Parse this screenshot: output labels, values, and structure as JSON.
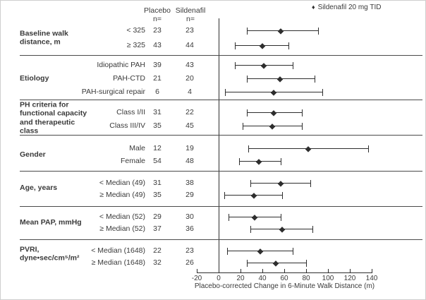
{
  "legend": {
    "marker": "♦",
    "label": "Sildenafil 20 mg TID"
  },
  "columns": {
    "placebo": "Placebo",
    "sildenafil": "Sildenafil",
    "n_eq": "n="
  },
  "axis": {
    "title": "Placebo-corrected Change in 6-Minute Walk Distance (m)",
    "ticks": [
      -20,
      0,
      20,
      40,
      60,
      80,
      100,
      120,
      140
    ]
  },
  "groups": [
    {
      "label": "Baseline walk\ndistance, m",
      "rows": [
        {
          "label": "< 325",
          "placebo_n": "23",
          "sildenafil_n": "23",
          "estimate": 57,
          "ci_low": 26,
          "ci_high": 91
        },
        {
          "label": "≥ 325",
          "placebo_n": "43",
          "sildenafil_n": "44",
          "estimate": 40,
          "ci_low": 15,
          "ci_high": 64
        }
      ]
    },
    {
      "label": "Etiology",
      "rows": [
        {
          "label": "Idiopathic PAH",
          "placebo_n": "39",
          "sildenafil_n": "43",
          "estimate": 41,
          "ci_low": 15,
          "ci_high": 68
        },
        {
          "label": "PAH-CTD",
          "placebo_n": "21",
          "sildenafil_n": "20",
          "estimate": 56,
          "ci_low": 26,
          "ci_high": 88
        },
        {
          "label": "PAH-surgical repair",
          "placebo_n": "6",
          "sildenafil_n": "4",
          "estimate": 50,
          "ci_low": 6,
          "ci_high": 95
        }
      ]
    },
    {
      "label": "PH criteria for\nfunctional capacity\nand therapeutic\nclass",
      "rows": [
        {
          "label": "Class I/II",
          "placebo_n": "31",
          "sildenafil_n": "22",
          "estimate": 50,
          "ci_low": 26,
          "ci_high": 76
        },
        {
          "label": "Class III/IV",
          "placebo_n": "35",
          "sildenafil_n": "45",
          "estimate": 49,
          "ci_low": 22,
          "ci_high": 76
        }
      ]
    },
    {
      "label": "Gender",
      "rows": [
        {
          "label": "Male",
          "placebo_n": "12",
          "sildenafil_n": "19",
          "estimate": 82,
          "ci_low": 27,
          "ci_high": 137
        },
        {
          "label": "Female",
          "placebo_n": "54",
          "sildenafil_n": "48",
          "estimate": 37,
          "ci_low": 19,
          "ci_high": 57
        }
      ]
    },
    {
      "label": "Age, years",
      "rows": [
        {
          "label": "< Median (49)",
          "placebo_n": "31",
          "sildenafil_n": "38",
          "estimate": 57,
          "ci_low": 29,
          "ci_high": 84
        },
        {
          "label": "≥ Median (49)",
          "placebo_n": "35",
          "sildenafil_n": "29",
          "estimate": 32,
          "ci_low": 5,
          "ci_high": 58
        }
      ]
    },
    {
      "label": "Mean PAP, mmHg",
      "rows": [
        {
          "label": "< Median (52)",
          "placebo_n": "29",
          "sildenafil_n": "30",
          "estimate": 33,
          "ci_low": 9,
          "ci_high": 57
        },
        {
          "label": "≥ Median (52)",
          "placebo_n": "37",
          "sildenafil_n": "36",
          "estimate": 58,
          "ci_low": 29,
          "ci_high": 86
        }
      ]
    },
    {
      "label": "PVRI,\ndyne•sec/cm⁵/m²",
      "rows": [
        {
          "label": "< Median (1648)",
          "placebo_n": "22",
          "sildenafil_n": "23",
          "estimate": 38,
          "ci_low": 8,
          "ci_high": 68
        },
        {
          "label": "≥ Median (1648)",
          "placebo_n": "32",
          "sildenafil_n": "26",
          "estimate": 52,
          "ci_low": 26,
          "ci_high": 80
        }
      ]
    }
  ],
  "chart_data": {
    "type": "scatter",
    "subtype": "forest-plot",
    "title": "",
    "xlabel": "Placebo-corrected Change in 6-Minute Walk Distance (m)",
    "xlim": [
      -20,
      140
    ],
    "x_ticks": [
      -20,
      0,
      20,
      40,
      60,
      80,
      100,
      120,
      140
    ],
    "reference_line_x": 0,
    "legend_position": "top-right",
    "grid": false,
    "series": [
      {
        "name": "Sildenafil 20 mg TID",
        "marker": "diamond",
        "points": [
          {
            "group": "Baseline walk distance, m",
            "subgroup": "< 325",
            "placebo_n": 23,
            "sildenafil_n": 23,
            "estimate": 57,
            "ci": [
              26,
              91
            ]
          },
          {
            "group": "Baseline walk distance, m",
            "subgroup": "≥ 325",
            "placebo_n": 43,
            "sildenafil_n": 44,
            "estimate": 40,
            "ci": [
              15,
              64
            ]
          },
          {
            "group": "Etiology",
            "subgroup": "Idiopathic PAH",
            "placebo_n": 39,
            "sildenafil_n": 43,
            "estimate": 41,
            "ci": [
              15,
              68
            ]
          },
          {
            "group": "Etiology",
            "subgroup": "PAH-CTD",
            "placebo_n": 21,
            "sildenafil_n": 20,
            "estimate": 56,
            "ci": [
              26,
              88
            ]
          },
          {
            "group": "Etiology",
            "subgroup": "PAH-surgical repair",
            "placebo_n": 6,
            "sildenafil_n": 4,
            "estimate": 50,
            "ci": [
              6,
              95
            ]
          },
          {
            "group": "PH criteria for functional capacity and therapeutic class",
            "subgroup": "Class I/II",
            "placebo_n": 31,
            "sildenafil_n": 22,
            "estimate": 50,
            "ci": [
              26,
              76
            ]
          },
          {
            "group": "PH criteria for functional capacity and therapeutic class",
            "subgroup": "Class III/IV",
            "placebo_n": 35,
            "sildenafil_n": 45,
            "estimate": 49,
            "ci": [
              22,
              76
            ]
          },
          {
            "group": "Gender",
            "subgroup": "Male",
            "placebo_n": 12,
            "sildenafil_n": 19,
            "estimate": 82,
            "ci": [
              27,
              137
            ]
          },
          {
            "group": "Gender",
            "subgroup": "Female",
            "placebo_n": 54,
            "sildenafil_n": 48,
            "estimate": 37,
            "ci": [
              19,
              57
            ]
          },
          {
            "group": "Age, years",
            "subgroup": "< Median (49)",
            "placebo_n": 31,
            "sildenafil_n": 38,
            "estimate": 57,
            "ci": [
              29,
              84
            ]
          },
          {
            "group": "Age, years",
            "subgroup": "≥ Median (49)",
            "placebo_n": 35,
            "sildenafil_n": 29,
            "estimate": 32,
            "ci": [
              5,
              58
            ]
          },
          {
            "group": "Mean PAP, mmHg",
            "subgroup": "< Median (52)",
            "placebo_n": 29,
            "sildenafil_n": 30,
            "estimate": 33,
            "ci": [
              9,
              57
            ]
          },
          {
            "group": "Mean PAP, mmHg",
            "subgroup": "≥ Median (52)",
            "placebo_n": 37,
            "sildenafil_n": 36,
            "estimate": 58,
            "ci": [
              29,
              86
            ]
          },
          {
            "group": "PVRI, dyne•sec/cm⁵/m²",
            "subgroup": "< Median (1648)",
            "placebo_n": 22,
            "sildenafil_n": 23,
            "estimate": 38,
            "ci": [
              8,
              68
            ]
          },
          {
            "group": "PVRI, dyne•sec/cm⁵/m²",
            "subgroup": "≥ Median (1648)",
            "placebo_n": 32,
            "sildenafil_n": 26,
            "estimate": 52,
            "ci": [
              26,
              80
            ]
          }
        ]
      }
    ]
  }
}
